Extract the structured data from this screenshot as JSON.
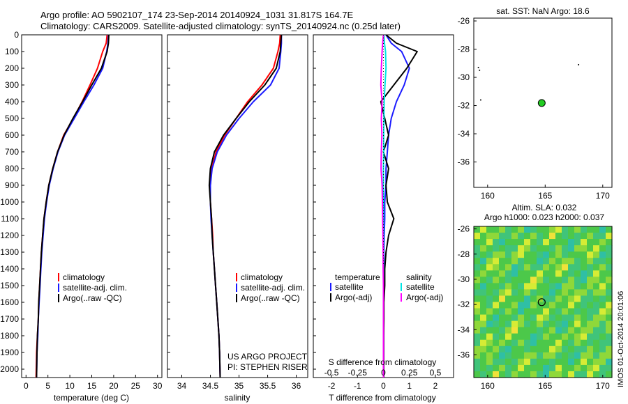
{
  "title_line1": "Argo profile: AO 5902107_174 23-Sep-2014 20140924_1031 31.817S 164.7E",
  "title_line2": "Climatology: CARS2009. Satellite-adjusted climatology: synTS_20140924.nc (0.25d later)",
  "credit_line1": "US ARGO PROJECT",
  "credit_line2": "PI: STEPHEN RISER",
  "watermark": "IMOS 01-Oct-2014 20:01:06",
  "colors": {
    "climatology": "#ff0000",
    "satellite": "#1a1aff",
    "argo": "#000000",
    "t_diff": "#00e5e5",
    "s_diff": "#ff00ff"
  },
  "chart_data": [
    {
      "type": "line",
      "xlabel": "temperature (deg C)",
      "ylim": [
        2050,
        0
      ],
      "xlim": [
        -1,
        31
      ],
      "xticks": [
        "0",
        "5",
        "10",
        "15",
        "20",
        "25",
        "30"
      ],
      "xtick_values": [
        0,
        5,
        10,
        15,
        20,
        25,
        30
      ],
      "yticks": [
        "0",
        "100",
        "200",
        "300",
        "400",
        "500",
        "600",
        "700",
        "800",
        "900",
        "1000",
        "1100",
        "1200",
        "1300",
        "1400",
        "1500",
        "1600",
        "1700",
        "1800",
        "1900",
        "2000"
      ],
      "ytick_values": [
        0,
        100,
        200,
        300,
        400,
        500,
        600,
        700,
        800,
        900,
        1000,
        1100,
        1200,
        1300,
        1400,
        1500,
        1600,
        1700,
        1800,
        1900,
        2000
      ],
      "legend": [
        "climatology",
        "satellite-adj. clim.",
        "Argo(..raw -QC)"
      ],
      "series": [
        {
          "name": "climatology",
          "x": [
            18.5,
            18.3,
            17.5,
            16.3,
            14.6,
            12.8,
            10.8,
            8.6,
            7.2,
            6.1,
            5.2,
            4.6,
            4.1,
            3.8,
            3.5,
            3.3,
            3.1,
            2.9,
            2.8,
            2.6,
            2.4,
            2.3
          ],
          "y": [
            0,
            50,
            100,
            200,
            300,
            400,
            500,
            600,
            700,
            800,
            900,
            1000,
            1100,
            1200,
            1300,
            1400,
            1500,
            1600,
            1700,
            1800,
            1900,
            2050
          ]
        },
        {
          "name": "satellite-adj. clim.",
          "x": [
            18.8,
            18.7,
            18.4,
            17.5,
            15.5,
            13.2,
            11.0,
            8.8,
            7.3,
            6.2,
            5.3,
            4.7,
            4.2,
            3.9,
            3.6,
            3.4,
            3.2,
            3.0,
            2.8,
            2.7,
            2.5,
            2.4
          ],
          "y": [
            0,
            50,
            100,
            200,
            300,
            400,
            500,
            600,
            700,
            800,
            900,
            1000,
            1100,
            1200,
            1300,
            1400,
            1500,
            1600,
            1700,
            1800,
            1900,
            2050
          ]
        },
        {
          "name": "Argo(..raw -QC)",
          "x": [
            18.9,
            18.8,
            18.5,
            17.2,
            15.0,
            12.9,
            10.7,
            8.7,
            7.2,
            6.1,
            5.2,
            4.6,
            4.1,
            3.8,
            3.5,
            3.3,
            3.1,
            2.9,
            2.8,
            2.6,
            2.5,
            2.4
          ],
          "y": [
            0,
            50,
            100,
            200,
            300,
            400,
            500,
            600,
            700,
            800,
            900,
            1000,
            1100,
            1200,
            1300,
            1400,
            1500,
            1600,
            1700,
            1800,
            1900,
            2050
          ]
        }
      ]
    },
    {
      "type": "line",
      "xlabel": "salinity",
      "ylim": [
        2050,
        0
      ],
      "xlim": [
        33.75,
        36.2
      ],
      "xticks": [
        "34",
        "34.5",
        "35",
        "35.5",
        "36"
      ],
      "xtick_values": [
        34,
        34.5,
        35,
        35.5,
        36
      ],
      "legend": [
        "climatology",
        "satellite-adj. clim.",
        "Argo(..raw -QC)"
      ],
      "series": [
        {
          "name": "climatology",
          "x": [
            35.72,
            35.71,
            35.68,
            35.6,
            35.4,
            35.15,
            34.95,
            34.75,
            34.6,
            34.52,
            34.5,
            34.5,
            34.52,
            34.54,
            34.55,
            34.57,
            34.59,
            34.61,
            34.63,
            34.65,
            34.66,
            34.67
          ],
          "y": [
            0,
            50,
            100,
            200,
            300,
            400,
            500,
            600,
            700,
            800,
            900,
            1000,
            1100,
            1200,
            1300,
            1400,
            1500,
            1600,
            1700,
            1800,
            1900,
            2050
          ]
        },
        {
          "name": "satellite-adj. clim.",
          "x": [
            35.74,
            35.74,
            35.73,
            35.7,
            35.55,
            35.25,
            35.0,
            34.78,
            34.62,
            34.53,
            34.5,
            34.5,
            34.51,
            34.53,
            34.55,
            34.57,
            34.59,
            34.61,
            34.63,
            34.65,
            34.66,
            34.67
          ],
          "y": [
            0,
            50,
            100,
            200,
            300,
            400,
            500,
            600,
            700,
            800,
            900,
            1000,
            1100,
            1200,
            1300,
            1400,
            1500,
            1600,
            1700,
            1800,
            1900,
            2050
          ]
        },
        {
          "name": "Argo(..raw -QC)",
          "x": [
            35.74,
            35.73,
            35.72,
            35.65,
            35.45,
            35.18,
            34.95,
            34.73,
            34.57,
            34.5,
            34.48,
            34.5,
            34.52,
            34.53,
            34.55,
            34.57,
            34.59,
            34.61,
            34.63,
            34.65,
            34.66,
            34.67
          ],
          "y": [
            0,
            50,
            100,
            200,
            300,
            400,
            500,
            600,
            700,
            800,
            900,
            1000,
            1100,
            1200,
            1300,
            1400,
            1500,
            1600,
            1700,
            1800,
            1900,
            2050
          ]
        }
      ]
    },
    {
      "type": "line",
      "xlabel": "T difference from climatology",
      "xlabel_top": "S difference from climatology",
      "ylim": [
        2050,
        0
      ],
      "xlim": [
        -2.7,
        2.7
      ],
      "xticks": [
        "-2",
        "-1",
        "0",
        "1",
        "2"
      ],
      "xtick_values": [
        -2,
        -1,
        0,
        1,
        2
      ],
      "sticks": [
        "-0.5",
        "-0.25",
        "0",
        "0.25",
        "0.5"
      ],
      "stick_values": [
        -0.5,
        -0.25,
        0,
        0.25,
        0.5
      ],
      "legend_titles": [
        "temperature",
        "salinity"
      ],
      "legend_temperature": [
        "satellite",
        "Argo(-adj)"
      ],
      "legend_salinity": [
        "satellite",
        "Argo(-adj)"
      ],
      "series": [
        {
          "name": "temperature satellite",
          "x": [
            0.1,
            0.3,
            0.7,
            1.0,
            0.8,
            0.5,
            0.3,
            0.2,
            0.15,
            0.1,
            0.1,
            0.05,
            0.05,
            0.03,
            0.02,
            0.02,
            0.02,
            0.01,
            0.01,
            0.01,
            0.01
          ],
          "y": [
            0,
            50,
            100,
            200,
            300,
            400,
            500,
            600,
            700,
            800,
            900,
            1000,
            1100,
            1200,
            1300,
            1400,
            1500,
            1600,
            1700,
            1800,
            2050
          ]
        },
        {
          "name": "temperature Argo(-adj)",
          "x": [
            0.1,
            0.5,
            1.3,
            0.9,
            0.4,
            -0.1,
            0.05,
            0.2,
            0.0,
            0.2,
            0.1,
            0.15,
            0.4,
            0.2,
            0.1,
            0.05,
            0.05,
            0.02,
            0.02,
            0.01,
            0.01
          ],
          "y": [
            0,
            50,
            100,
            200,
            300,
            400,
            500,
            600,
            700,
            800,
            900,
            1000,
            1100,
            1200,
            1300,
            1400,
            1500,
            1600,
            1700,
            1800,
            2050
          ]
        },
        {
          "name": "salinity satellite",
          "x": [
            0.02,
            0.04,
            0.08,
            0.1,
            0.06,
            0.03,
            0.02,
            0.01,
            0.01,
            0.0,
            0.0,
            0.0,
            0.0,
            0.0,
            0.0,
            0.0,
            0.0,
            0.0,
            0.0,
            0.0,
            0.0
          ],
          "y": [
            0,
            50,
            100,
            200,
            300,
            400,
            500,
            600,
            700,
            800,
            900,
            1000,
            1100,
            1200,
            1300,
            1400,
            1500,
            1600,
            1700,
            1800,
            2050
          ]
        },
        {
          "name": "salinity Argo(-adj)",
          "x": [
            0.0,
            -0.03,
            -0.05,
            -0.08,
            -0.1,
            -0.05,
            -0.08,
            -0.06,
            -0.08,
            -0.09,
            -0.05,
            -0.04,
            -0.03,
            -0.02,
            -0.01,
            -0.01,
            0.0,
            0.0,
            0.0,
            0.0,
            0.0
          ],
          "y": [
            0,
            50,
            100,
            200,
            300,
            400,
            500,
            600,
            700,
            800,
            900,
            1000,
            1100,
            1200,
            1300,
            1400,
            1500,
            1600,
            1700,
            1800,
            2050
          ]
        }
      ]
    },
    {
      "type": "scatter",
      "title": "sat. SST: NaN Argo: 18.6",
      "xlim": [
        158.8,
        170.8
      ],
      "ylim": [
        -37.8,
        -25.8
      ],
      "xticks": [
        "160",
        "165",
        "170"
      ],
      "xtick_values": [
        160,
        165,
        170
      ],
      "yticks": [
        "-26",
        "-28",
        "-30",
        "-32",
        "-34",
        "-36"
      ],
      "ytick_values": [
        -26,
        -28,
        -30,
        -32,
        -34,
        -36
      ],
      "profile_location": {
        "x": 164.7,
        "y": -31.817
      }
    },
    {
      "type": "heatmap",
      "title": "Altim. SLA: 0.032",
      "subtitle": "Argo h1000: 0.023 h2000: 0.037",
      "xlim": [
        158.8,
        170.8
      ],
      "ylim": [
        -37.8,
        -25.8
      ],
      "xticks": [
        "160",
        "165",
        "170"
      ],
      "xtick_values": [
        160,
        165,
        170
      ],
      "yticks": [
        "-26",
        "-28",
        "-30",
        "-32",
        "-34",
        "-36"
      ],
      "ytick_values": [
        -26,
        -28,
        -30,
        -32,
        -34,
        -36
      ],
      "profile_location": {
        "x": 164.7,
        "y": -31.817
      }
    }
  ]
}
